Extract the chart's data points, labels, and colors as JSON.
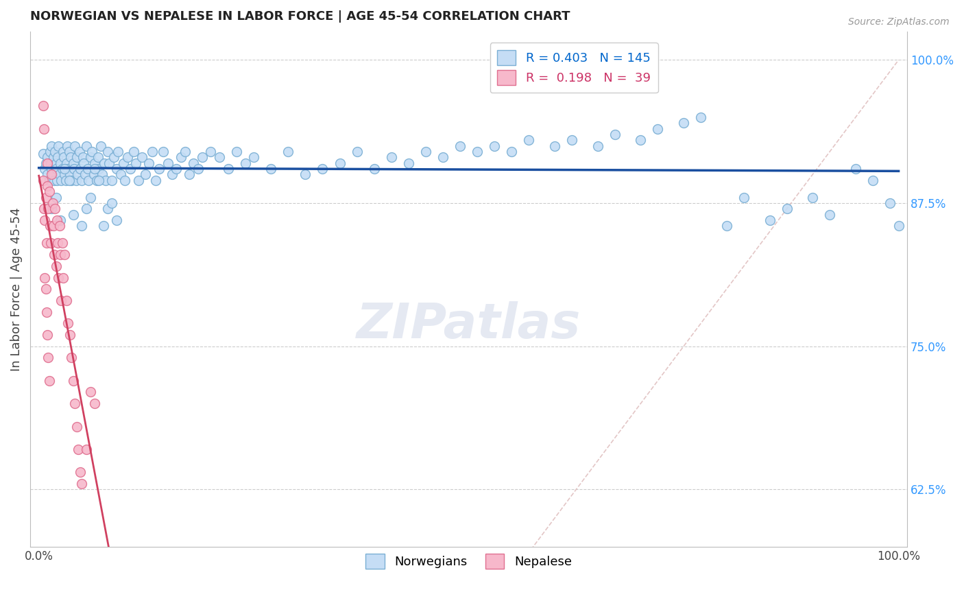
{
  "title": "NORWEGIAN VS NEPALESE IN LABOR FORCE | AGE 45-54 CORRELATION CHART",
  "source": "Source: ZipAtlas.com",
  "ylabel": "In Labor Force | Age 45-54",
  "yticks": [
    0.625,
    0.75,
    0.875,
    1.0
  ],
  "ytick_labels": [
    "62.5%",
    "75.0%",
    "87.5%",
    "100.0%"
  ],
  "xlim": [
    -0.01,
    1.01
  ],
  "ylim": [
    0.575,
    1.025
  ],
  "watermark": "ZIPatlas",
  "dot_color_norwegian": "#c5ddf5",
  "dot_edgecolor_norwegian": "#7aafd4",
  "dot_color_nepalese": "#f7b8cb",
  "dot_edgecolor_nepalese": "#e07090",
  "line_color_norwegian": "#1a4fa0",
  "line_color_nepalese": "#d04060",
  "diagonal_color": "#e0c0c0",
  "grid_color": "#cccccc",
  "background_color": "#ffffff",
  "nor_legend_label": "R = 0.403   N = 145",
  "nep_legend_label": "R =  0.198   N =  39",
  "nor_legend_color": "#0066cc",
  "nep_legend_color": "#cc3366",
  "dot_size": 100,
  "norwegian_x": [
    0.005,
    0.007,
    0.008,
    0.01,
    0.01,
    0.012,
    0.013,
    0.014,
    0.015,
    0.015,
    0.016,
    0.017,
    0.018,
    0.019,
    0.02,
    0.02,
    0.021,
    0.022,
    0.023,
    0.024,
    0.025,
    0.026,
    0.027,
    0.028,
    0.029,
    0.03,
    0.031,
    0.032,
    0.033,
    0.034,
    0.035,
    0.036,
    0.037,
    0.038,
    0.04,
    0.041,
    0.042,
    0.043,
    0.044,
    0.045,
    0.047,
    0.048,
    0.05,
    0.051,
    0.052,
    0.054,
    0.055,
    0.057,
    0.058,
    0.06,
    0.062,
    0.064,
    0.065,
    0.067,
    0.069,
    0.07,
    0.072,
    0.074,
    0.076,
    0.078,
    0.08,
    0.082,
    0.085,
    0.087,
    0.09,
    0.092,
    0.095,
    0.098,
    0.1,
    0.103,
    0.106,
    0.11,
    0.113,
    0.116,
    0.12,
    0.124,
    0.128,
    0.132,
    0.136,
    0.14,
    0.145,
    0.15,
    0.155,
    0.16,
    0.165,
    0.17,
    0.175,
    0.18,
    0.185,
    0.19,
    0.2,
    0.21,
    0.22,
    0.23,
    0.24,
    0.25,
    0.27,
    0.29,
    0.31,
    0.33,
    0.35,
    0.37,
    0.39,
    0.41,
    0.43,
    0.45,
    0.47,
    0.49,
    0.51,
    0.53,
    0.55,
    0.57,
    0.6,
    0.62,
    0.65,
    0.67,
    0.7,
    0.72,
    0.75,
    0.77,
    0.8,
    0.82,
    0.85,
    0.87,
    0.9,
    0.92,
    0.95,
    0.97,
    0.99,
    1.0,
    0.015,
    0.02,
    0.025,
    0.03,
    0.035,
    0.04,
    0.05,
    0.055,
    0.06,
    0.065,
    0.07,
    0.075,
    0.08,
    0.085,
    0.09
  ],
  "norwegian_y": [
    0.918,
    0.905,
    0.91,
    0.9,
    0.915,
    0.895,
    0.92,
    0.91,
    0.905,
    0.925,
    0.9,
    0.915,
    0.895,
    0.92,
    0.91,
    0.905,
    0.895,
    0.915,
    0.925,
    0.9,
    0.91,
    0.895,
    0.905,
    0.92,
    0.915,
    0.9,
    0.895,
    0.91,
    0.925,
    0.905,
    0.92,
    0.9,
    0.915,
    0.895,
    0.91,
    0.905,
    0.925,
    0.895,
    0.915,
    0.9,
    0.92,
    0.905,
    0.895,
    0.915,
    0.91,
    0.9,
    0.925,
    0.905,
    0.895,
    0.915,
    0.92,
    0.9,
    0.91,
    0.895,
    0.915,
    0.905,
    0.925,
    0.9,
    0.91,
    0.895,
    0.92,
    0.91,
    0.895,
    0.915,
    0.905,
    0.92,
    0.9,
    0.91,
    0.895,
    0.915,
    0.905,
    0.92,
    0.91,
    0.895,
    0.915,
    0.9,
    0.91,
    0.92,
    0.895,
    0.905,
    0.92,
    0.91,
    0.9,
    0.905,
    0.915,
    0.92,
    0.9,
    0.91,
    0.905,
    0.915,
    0.92,
    0.915,
    0.905,
    0.92,
    0.91,
    0.915,
    0.905,
    0.92,
    0.9,
    0.905,
    0.91,
    0.92,
    0.905,
    0.915,
    0.91,
    0.92,
    0.915,
    0.925,
    0.92,
    0.925,
    0.92,
    0.93,
    0.925,
    0.93,
    0.925,
    0.935,
    0.93,
    0.94,
    0.945,
    0.95,
    0.855,
    0.88,
    0.86,
    0.87,
    0.88,
    0.865,
    0.905,
    0.895,
    0.875,
    0.855,
    0.87,
    0.88,
    0.86,
    0.905,
    0.895,
    0.865,
    0.855,
    0.87,
    0.88,
    0.905,
    0.895,
    0.855,
    0.87,
    0.875,
    0.86
  ],
  "nepalese_x": [
    0.005,
    0.006,
    0.007,
    0.008,
    0.009,
    0.01,
    0.01,
    0.011,
    0.012,
    0.013,
    0.014,
    0.015,
    0.016,
    0.017,
    0.018,
    0.019,
    0.02,
    0.021,
    0.022,
    0.023,
    0.024,
    0.025,
    0.026,
    0.027,
    0.028,
    0.03,
    0.032,
    0.034,
    0.036,
    0.038,
    0.04,
    0.042,
    0.044,
    0.046,
    0.048,
    0.05,
    0.055,
    0.06,
    0.065
  ],
  "nepalese_y": [
    0.895,
    0.87,
    0.86,
    0.88,
    0.84,
    0.91,
    0.89,
    0.87,
    0.885,
    0.855,
    0.84,
    0.9,
    0.875,
    0.855,
    0.83,
    0.87,
    0.82,
    0.86,
    0.84,
    0.81,
    0.855,
    0.83,
    0.79,
    0.84,
    0.81,
    0.83,
    0.79,
    0.77,
    0.76,
    0.74,
    0.72,
    0.7,
    0.68,
    0.66,
    0.64,
    0.63,
    0.66,
    0.71,
    0.7
  ],
  "nepalese_isolated_x": [
    0.005,
    0.006,
    0.007,
    0.008,
    0.009,
    0.01,
    0.011,
    0.012
  ],
  "nepalese_isolated_y": [
    0.96,
    0.94,
    0.81,
    0.8,
    0.78,
    0.76,
    0.74,
    0.72
  ]
}
